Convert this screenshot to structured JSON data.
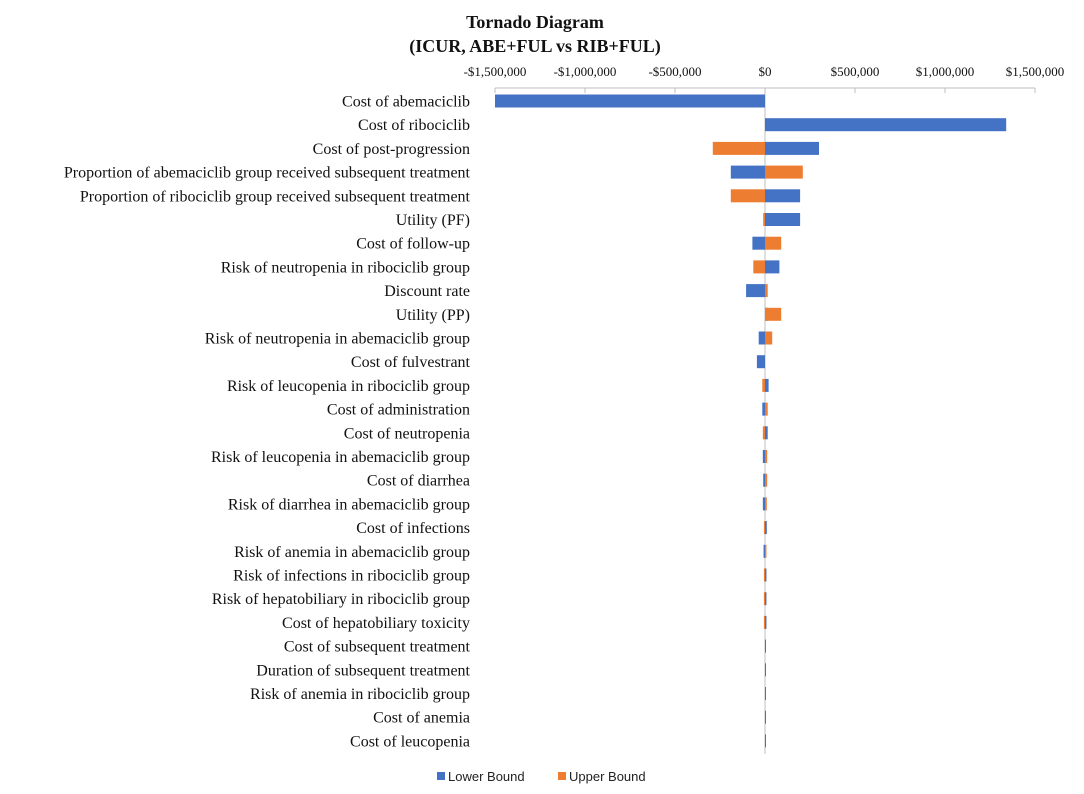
{
  "chart_data": {
    "type": "bar",
    "orientation": "horizontal",
    "title": "Tornado Diagram",
    "subtitle": "(ICUR, ABE+FUL vs RIB+FUL)",
    "xlabel": "",
    "ylabel": "",
    "xlim": [
      -1500000,
      1500000
    ],
    "xticks": [
      -1500000,
      -1000000,
      -500000,
      0,
      500000,
      1000000,
      1500000
    ],
    "xtick_labels": [
      "-$1,500,000",
      "-$1,000,000",
      "-$500,000",
      "$0",
      "$500,000",
      "$1,000,000",
      "$1,500,000"
    ],
    "axis_position": "top",
    "legend_position": "bottom",
    "categories": [
      "Cost of abemaciclib",
      "Cost of ribociclib",
      "Cost of post-progression",
      "Proportion of abemaciclib group received subsequent treatment",
      "Proportion of ribociclib group received subsequent treatment",
      "Utility (PF)",
      "Cost of follow-up",
      "Risk of neutropenia  in ribociclib group",
      "Discount rate",
      "Utility (PP)",
      "Risk of neutropenia in abemaciclib group",
      "Cost of fulvestrant",
      "Risk of leucopenia in ribociclib group",
      "Cost of administration",
      "Cost of neutropenia",
      "Risk of leucopenia in abemaciclib group",
      "Cost of diarrhea",
      "Risk of diarrhea in abemaciclib group",
      "Cost of infections",
      "Risk of anemia in abemaciclib group",
      "Risk of infections in ribociclib group",
      "Risk of hepatobiliary in ribociclib group",
      "Cost of hepatobiliary toxicity",
      "Cost of subsequent treatment",
      "Duration of subsequent treatment",
      "Risk of anemia in ribociclib group",
      "Cost of anemia",
      "Cost of leucopenia"
    ],
    "series": [
      {
        "name": "Lower Bound",
        "color": "#4472C4",
        "values": [
          -1500000,
          1340000,
          300000,
          -190000,
          195000,
          195000,
          -70000,
          80000,
          -105000,
          15000,
          -35000,
          -45000,
          20000,
          -15000,
          15000,
          -12000,
          -10000,
          -12000,
          10000,
          -8000,
          8000,
          8000,
          8000,
          1000,
          1000,
          1000,
          1000,
          1000
        ]
      },
      {
        "name": "Upper Bound",
        "color": "#ED7D31",
        "values": [
          0,
          0,
          -290000,
          210000,
          -190000,
          -10000,
          90000,
          -65000,
          15000,
          90000,
          40000,
          0,
          -15000,
          15000,
          -12000,
          12000,
          12000,
          10000,
          -6000,
          8000,
          -6000,
          -6000,
          -6000,
          0,
          0,
          0,
          0,
          0
        ]
      }
    ]
  }
}
